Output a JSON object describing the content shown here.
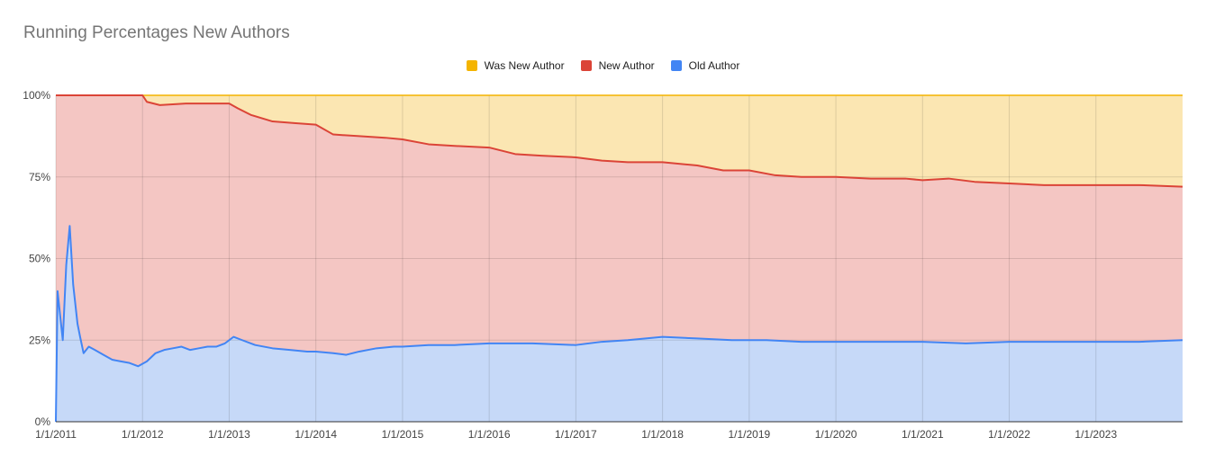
{
  "chart_data": {
    "type": "area",
    "title": "Running Percentages New Authors",
    "stacked": true,
    "y_percent": true,
    "ylim": [
      0,
      100
    ],
    "y_ticks": [
      "0%",
      "25%",
      "50%",
      "75%",
      "100%"
    ],
    "y_tick_values": [
      0,
      25,
      50,
      75,
      100
    ],
    "x_ticks": [
      "1/1/2011",
      "1/1/2012",
      "1/1/2013",
      "1/1/2014",
      "1/1/2015",
      "1/1/2016",
      "1/1/2017",
      "1/1/2018",
      "1/1/2019",
      "1/1/2020",
      "1/1/2021",
      "1/1/2022",
      "1/1/2023"
    ],
    "xlim": [
      2011.0,
      2024.0
    ],
    "grid": true,
    "legend_position": "top",
    "series": [
      {
        "name": "Was New Author",
        "color": "#f4b400",
        "fill": "#fbe6b2"
      },
      {
        "name": "New Author",
        "color": "#db4437",
        "fill": "#f4c6c3"
      },
      {
        "name": "Old Author",
        "color": "#4285f4",
        "fill": "#c6d9f8"
      }
    ],
    "old_author": {
      "x": [
        2011.0,
        2011.02,
        2011.04,
        2011.08,
        2011.12,
        2011.16,
        2011.2,
        2011.25,
        2011.28,
        2011.32,
        2011.38,
        2011.45,
        2011.55,
        2011.65,
        2011.75,
        2011.85,
        2011.95,
        2012.05,
        2012.15,
        2012.25,
        2012.35,
        2012.45,
        2012.55,
        2012.65,
        2012.75,
        2012.85,
        2012.95,
        2013.05,
        2013.15,
        2013.3,
        2013.5,
        2013.7,
        2013.9,
        2014.0,
        2014.2,
        2014.35,
        2014.5,
        2014.7,
        2014.9,
        2015.0,
        2015.3,
        2015.6,
        2016.0,
        2016.5,
        2017.0,
        2017.3,
        2017.6,
        2018.0,
        2018.4,
        2018.8,
        2019.2,
        2019.6,
        2020.0,
        2020.5,
        2021.0,
        2021.5,
        2022.0,
        2022.5,
        2023.0,
        2023.5,
        2024.0
      ],
      "y": [
        0,
        40,
        35,
        25,
        48,
        60,
        42,
        30,
        26,
        21,
        23,
        22,
        20.5,
        19,
        18.5,
        18,
        17,
        18.5,
        21,
        22,
        22.5,
        23,
        22,
        22.5,
        23,
        23,
        24,
        26,
        25,
        23.5,
        22.5,
        22,
        21.5,
        21.5,
        21,
        20.5,
        21.5,
        22.5,
        23,
        23,
        23.5,
        23.5,
        24,
        24,
        23.5,
        24.5,
        25,
        26,
        25.5,
        25,
        25,
        24.5,
        24.5,
        24.5,
        24.5,
        24,
        24.5,
        24.5,
        24.5,
        24.5,
        25
      ]
    },
    "new_author_cumulative": {
      "x": [
        2011.0,
        2011.5,
        2012.0,
        2012.05,
        2012.2,
        2012.5,
        2012.8,
        2013.0,
        2013.1,
        2013.25,
        2013.5,
        2013.75,
        2014.0,
        2014.2,
        2014.5,
        2014.8,
        2015.0,
        2015.3,
        2015.6,
        2016.0,
        2016.3,
        2016.6,
        2017.0,
        2017.3,
        2017.6,
        2018.0,
        2018.4,
        2018.7,
        2019.0,
        2019.3,
        2019.6,
        2020.0,
        2020.4,
        2020.8,
        2021.0,
        2021.3,
        2021.6,
        2022.0,
        2022.4,
        2022.8,
        2023.0,
        2023.5,
        2024.0
      ],
      "y": [
        100,
        100,
        100,
        98,
        97,
        97.5,
        97.5,
        97.5,
        96,
        94,
        92,
        91.5,
        91,
        88,
        87.5,
        87,
        86.5,
        85,
        84.5,
        84,
        82,
        81.5,
        81,
        80,
        79.5,
        79.5,
        78.5,
        77,
        77,
        75.5,
        75,
        75,
        74.5,
        74.5,
        74,
        74.5,
        73.5,
        73,
        72.5,
        72.5,
        72.5,
        72.5,
        72
      ]
    }
  }
}
